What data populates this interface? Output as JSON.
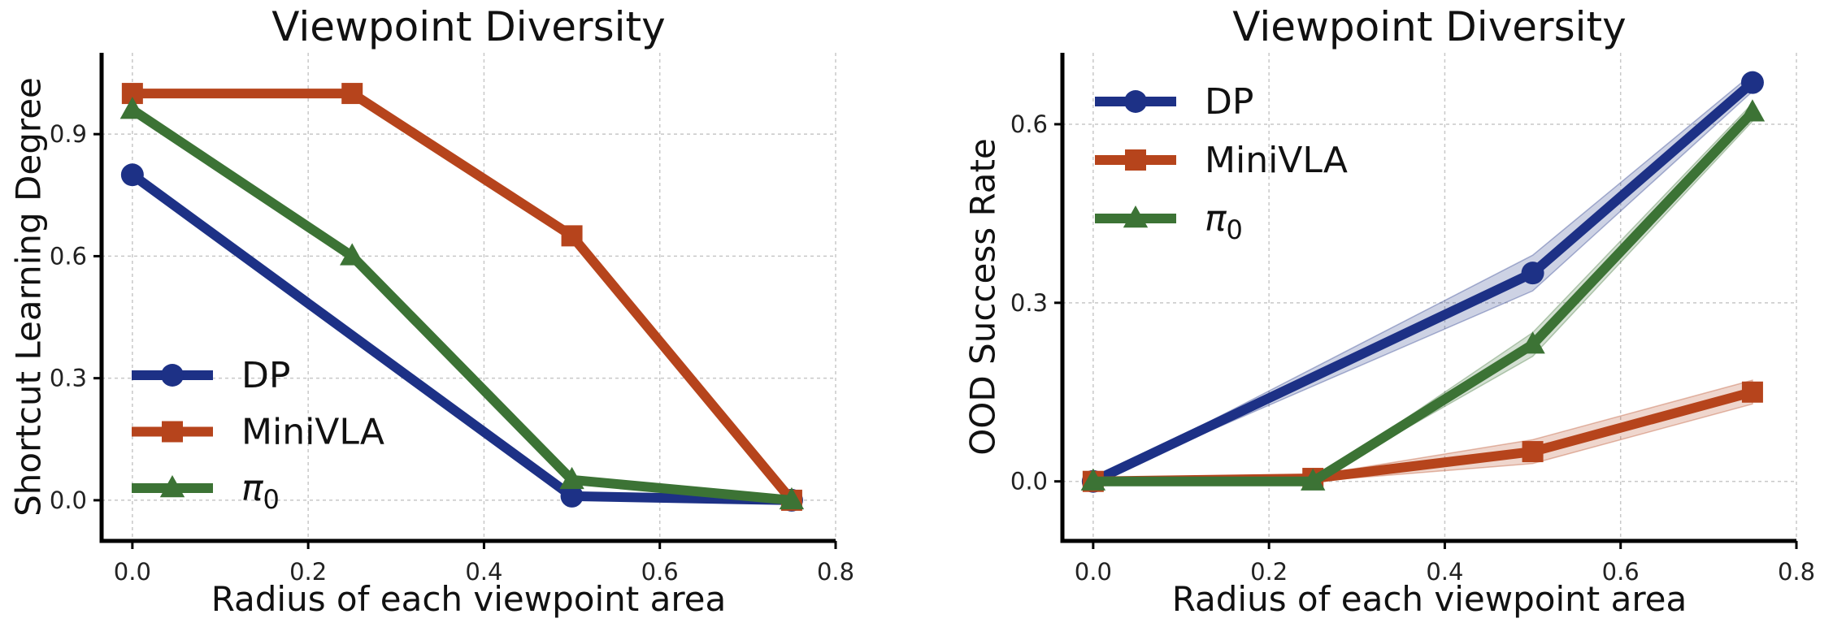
{
  "colors": {
    "DP": "#1d3186",
    "MiniVLA": "#b6441c",
    "pi0": "#3c7335"
  },
  "chart_data": [
    {
      "type": "line",
      "title": "Viewpoint Diversity",
      "xlabel": "Radius of each viewpoint area",
      "ylabel": "Shortcut Learning Degree",
      "xlim": [
        -0.035,
        0.8
      ],
      "ylim": [
        -0.1,
        1.1
      ],
      "xticks": [
        0.0,
        0.2,
        0.4,
        0.6,
        0.8
      ],
      "xtick_labels": [
        "0.0",
        "0.2",
        "0.4",
        "0.6",
        "0.8"
      ],
      "yticks": [
        0.0,
        0.3,
        0.6,
        0.9
      ],
      "ytick_labels": [
        "0.0",
        "0.3",
        "0.6",
        "0.9"
      ],
      "grid": true,
      "legend": "lower-left",
      "x": [
        0.0,
        0.25,
        0.5,
        0.75
      ],
      "series": [
        {
          "name": "DP",
          "key": "DP",
          "marker": "circle",
          "values": [
            0.8,
            null,
            0.01,
            0.0
          ]
        },
        {
          "name": "MiniVLA",
          "key": "MiniVLA",
          "marker": "square",
          "values": [
            1.0,
            1.0,
            0.65,
            0.0
          ]
        },
        {
          "name": "π0",
          "key": "pi0",
          "marker": "triangle",
          "values": [
            0.96,
            0.6,
            0.05,
            0.0
          ]
        }
      ]
    },
    {
      "type": "line",
      "title": "Viewpoint Diversity",
      "xlabel": "Radius of each viewpoint area",
      "ylabel": "OOD Success Rate",
      "xlim": [
        -0.035,
        0.8
      ],
      "ylim": [
        -0.1,
        0.72
      ],
      "xticks": [
        0.0,
        0.2,
        0.4,
        0.6,
        0.8
      ],
      "xtick_labels": [
        "0.0",
        "0.2",
        "0.4",
        "0.6",
        "0.8"
      ],
      "yticks": [
        0.0,
        0.3,
        0.6
      ],
      "ytick_labels": [
        "0.0",
        "0.3",
        "0.6"
      ],
      "grid": true,
      "legend": "upper-left",
      "x": [
        0.0,
        0.25,
        0.5,
        0.75
      ],
      "series": [
        {
          "name": "DP",
          "key": "DP",
          "marker": "circle",
          "values": [
            0.0,
            null,
            0.35,
            0.67
          ],
          "band": [
            0.0,
            null,
            0.03,
            0.015
          ]
        },
        {
          "name": "MiniVLA",
          "key": "MiniVLA",
          "marker": "square",
          "values": [
            0.0,
            0.005,
            0.05,
            0.15
          ],
          "band": [
            0.0,
            0.005,
            0.02,
            0.02
          ]
        },
        {
          "name": "π0",
          "key": "pi0",
          "marker": "triangle",
          "values": [
            0.0,
            0.0,
            0.23,
            0.62
          ],
          "band": [
            0.0,
            0.0,
            0.02,
            0.015
          ]
        }
      ]
    }
  ]
}
